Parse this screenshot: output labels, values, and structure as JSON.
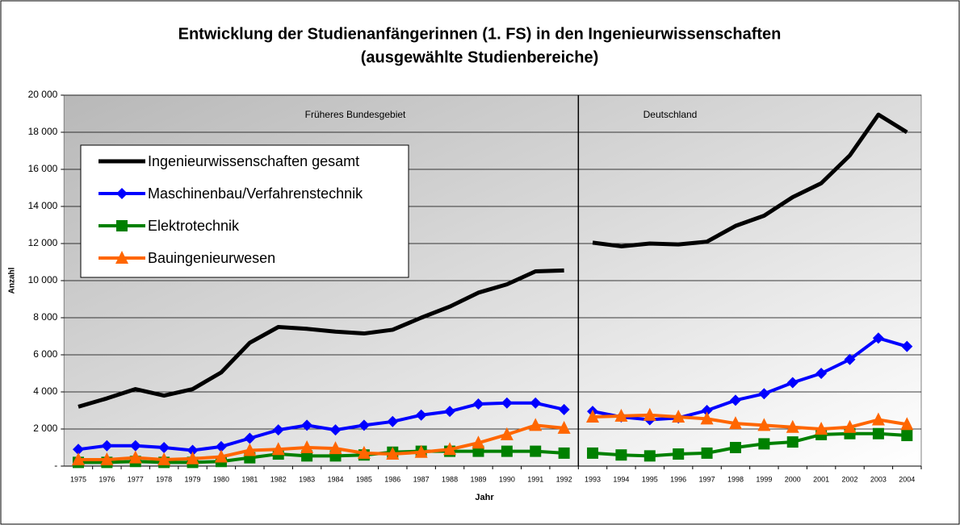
{
  "chart_data": {
    "type": "line",
    "title": [
      "Entwicklung der Studienanfängerinnen (1. FS) in den Ingenieurwissenschaften",
      "(ausgewählte Studienbereiche)"
    ],
    "x_label": "Jahr",
    "y_label": "Anzahl",
    "categories": [
      "1975",
      "1976",
      "1977",
      "1978",
      "1979",
      "1980",
      "1981",
      "1982",
      "1983",
      "1984",
      "1985",
      "1986",
      "1987",
      "1988",
      "1989",
      "1990",
      "1991",
      "1992",
      "1993",
      "1994",
      "1995",
      "1996",
      "1997",
      "1998",
      "1999",
      "2000",
      "2001",
      "2002",
      "2003",
      "2004"
    ],
    "regions": [
      {
        "label": "Früheres Bundesgebiet",
        "from": "1975",
        "to": "1992"
      },
      {
        "label": "Deutschland",
        "from": "1993",
        "to": "2004"
      }
    ],
    "series": [
      {
        "name": "Ingenieurwissenschaften gesamt",
        "color": "#000000",
        "marker": "none",
        "values": [
          3200,
          3650,
          4150,
          3800,
          4150,
          5050,
          6650,
          7500,
          7400,
          7250,
          7150,
          7350,
          8000,
          8600,
          9350,
          9800,
          10500,
          10550,
          12050,
          11850,
          12000,
          11950,
          12100,
          12950,
          13500,
          14500,
          15250,
          16750,
          18950,
          18000
        ]
      },
      {
        "name": "Maschinenbau/Verfahrenstechnik",
        "color": "#0000ff",
        "marker": "diamond",
        "values": [
          900,
          1100,
          1100,
          1000,
          850,
          1050,
          1500,
          1950,
          2200,
          1950,
          2200,
          2400,
          2750,
          2950,
          3350,
          3400,
          3400,
          3050,
          2950,
          2650,
          2500,
          2600,
          3000,
          3550,
          3900,
          4500,
          5000,
          5750,
          6900,
          6450
        ]
      },
      {
        "name": "Elektrotechnik",
        "color": "#008000",
        "marker": "square",
        "values": [
          200,
          200,
          250,
          200,
          200,
          250,
          450,
          650,
          550,
          550,
          600,
          750,
          800,
          800,
          800,
          800,
          800,
          700,
          700,
          600,
          550,
          650,
          700,
          1000,
          1200,
          1300,
          1700,
          1750,
          1750,
          1650
        ]
      },
      {
        "name": "Bauingenieurwesen",
        "color": "#ff6600",
        "marker": "triangle",
        "values": [
          350,
          350,
          450,
          350,
          400,
          500,
          850,
          900,
          1000,
          950,
          700,
          650,
          750,
          900,
          1250,
          1700,
          2200,
          2050,
          2650,
          2700,
          2750,
          2650,
          2550,
          2300,
          2200,
          2100,
          2000,
          2100,
          2500,
          2250
        ]
      }
    ],
    "ylim": [
      0,
      20000
    ],
    "yticks": [
      {
        "value": 0,
        "label": "-"
      },
      {
        "value": 2000,
        "label": "2 000"
      },
      {
        "value": 4000,
        "label": "4 000"
      },
      {
        "value": 6000,
        "label": "6 000"
      },
      {
        "value": 8000,
        "label": "8 000"
      },
      {
        "value": 10000,
        "label": "10 000"
      },
      {
        "value": 12000,
        "label": "12 000"
      },
      {
        "value": 14000,
        "label": "14 000"
      },
      {
        "value": 16000,
        "label": "16 000"
      },
      {
        "value": 18000,
        "label": "18 000"
      },
      {
        "value": 20000,
        "label": "20 000"
      }
    ],
    "grid": true,
    "legend": "upper-left"
  }
}
